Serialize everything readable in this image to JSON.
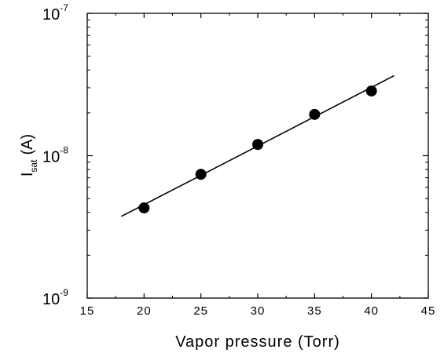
{
  "chart_data": {
    "type": "scatter",
    "title": "",
    "xlabel": "Vapor pressure (Torr)",
    "ylabel": "I",
    "ylabel_subscript": "sat",
    "ylabel_unit": "(A)",
    "xlim": [
      15,
      45
    ],
    "ylim": [
      1e-09,
      1e-07
    ],
    "y_scale": "log",
    "x_ticks": [
      15,
      20,
      25,
      30,
      35,
      40,
      45
    ],
    "x_tick_labels": [
      "15",
      "20",
      "25",
      "30",
      "35",
      "40",
      "45"
    ],
    "y_ticks": [
      1e-09,
      1e-08,
      1e-07
    ],
    "y_tick_labels": [
      {
        "base": "10",
        "exp": "-9"
      },
      {
        "base": "10",
        "exp": "-8"
      },
      {
        "base": "10",
        "exp": "-7"
      }
    ],
    "grid": false,
    "series": [
      {
        "kind": "points",
        "color": "#000000",
        "x": [
          20,
          25,
          30,
          35,
          40
        ],
        "y": [
          4.3e-09,
          7.4e-09,
          1.2e-08,
          1.95e-08,
          2.85e-08
        ]
      },
      {
        "kind": "fit-line",
        "color": "#000000",
        "x": [
          18,
          42
        ],
        "y": [
          3.75e-09,
          3.65e-08
        ]
      }
    ]
  }
}
